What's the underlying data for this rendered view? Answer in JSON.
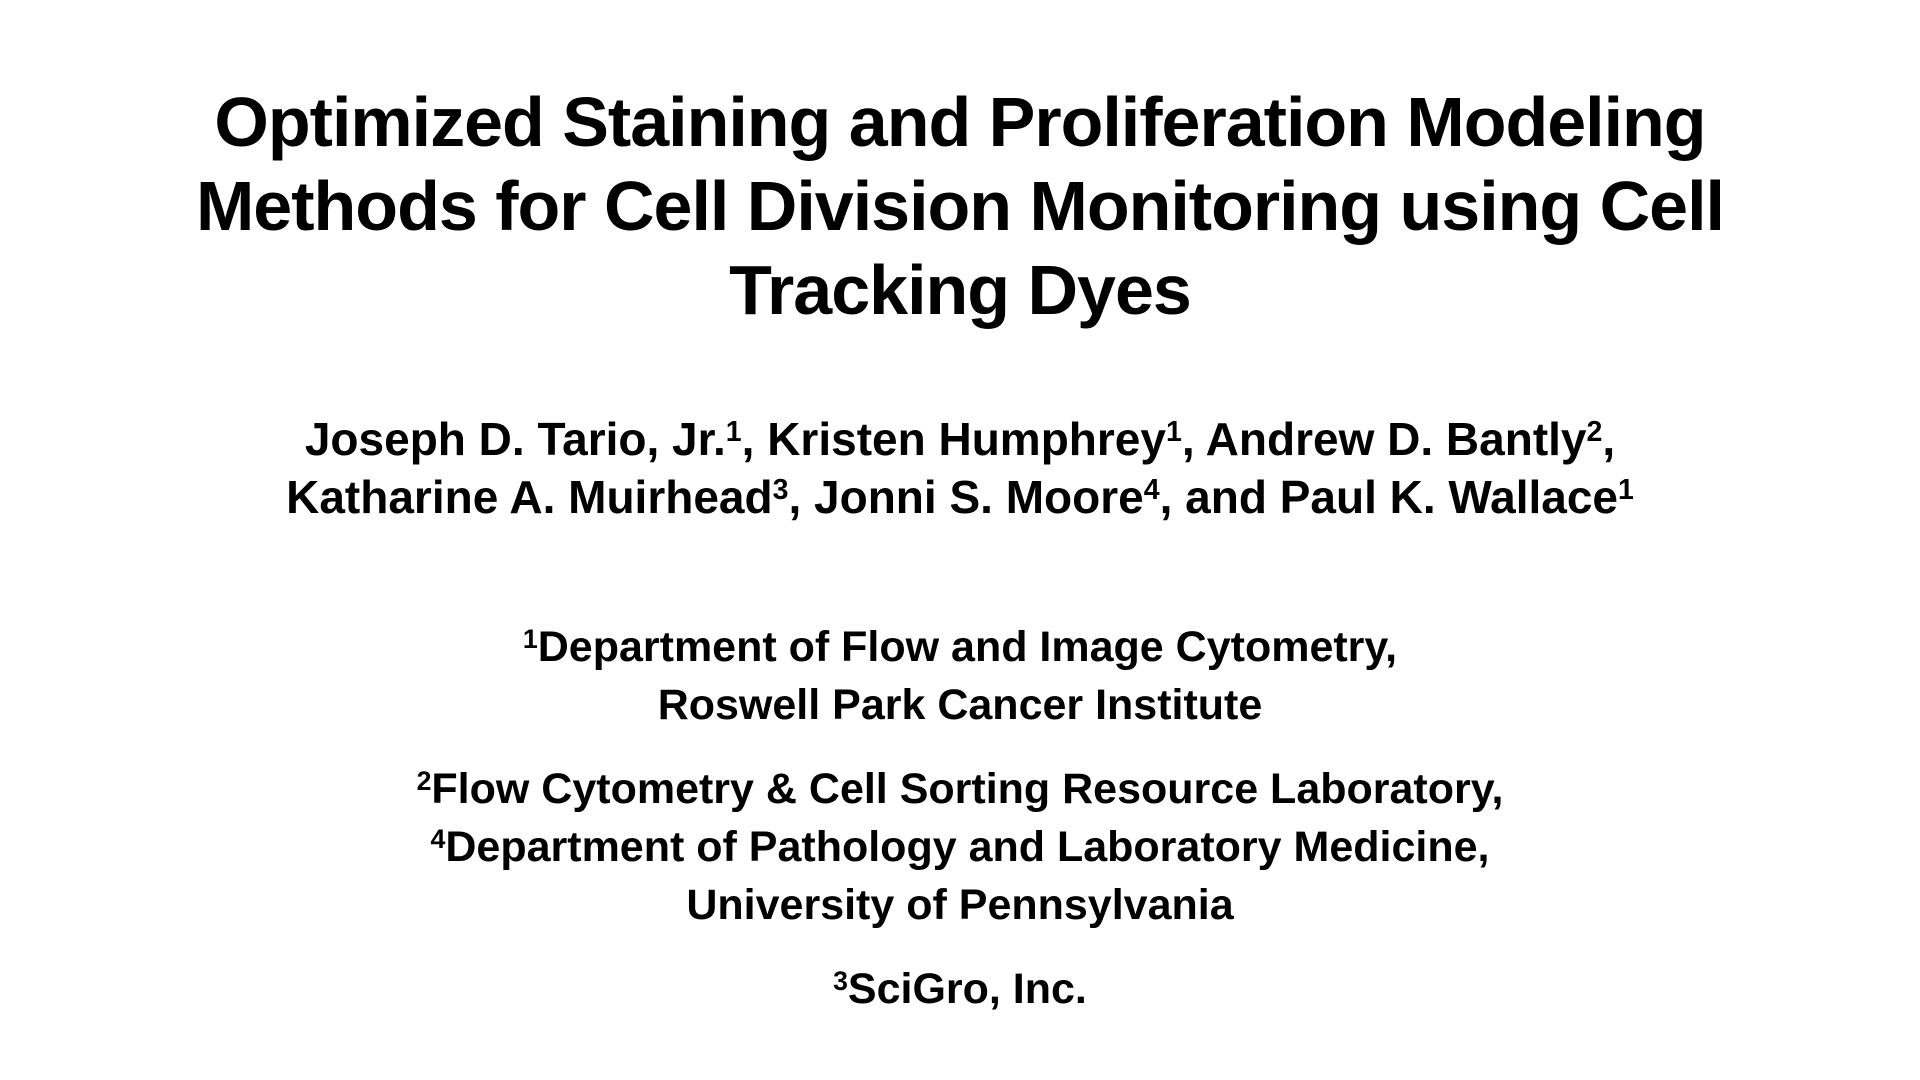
{
  "page": {
    "background_color": "#ffffff",
    "text_color": "#000000"
  },
  "title": {
    "lines": [
      "Optimized Staining and Proliferation Modeling",
      "Methods for Cell Division Monitoring using Cell",
      "Tracking Dyes"
    ]
  },
  "authors": {
    "line1": {
      "segments": [
        {
          "text": "Joseph D. Tario, Jr.",
          "sup": "1"
        },
        {
          "text": ", Kristen Humphrey",
          "sup": "1"
        },
        {
          "text": ", Andrew D. Bantly",
          "sup": "2"
        },
        {
          "text": ","
        }
      ]
    },
    "line2": {
      "segments": [
        {
          "text": "Katharine A. Muirhead",
          "sup": "3"
        },
        {
          "text": ", Jonni S. Moore",
          "sup": "4"
        },
        {
          "text": ", and Paul K. Wallace",
          "sup": "1"
        }
      ]
    }
  },
  "affiliations": [
    {
      "lines": [
        {
          "sup": "1",
          "text": "Department of Flow and Image Cytometry,"
        },
        {
          "sup": "",
          "text": "Roswell Park Cancer Institute"
        }
      ]
    },
    {
      "lines": [
        {
          "sup": "2",
          "text": "Flow Cytometry & Cell Sorting Resource Laboratory,"
        },
        {
          "sup": "4",
          "text": "Department of Pathology and Laboratory Medicine,"
        },
        {
          "sup": "",
          "text": "University of Pennsylvania"
        }
      ]
    },
    {
      "lines": [
        {
          "sup": "3",
          "text": "SciGro, Inc."
        }
      ]
    }
  ]
}
